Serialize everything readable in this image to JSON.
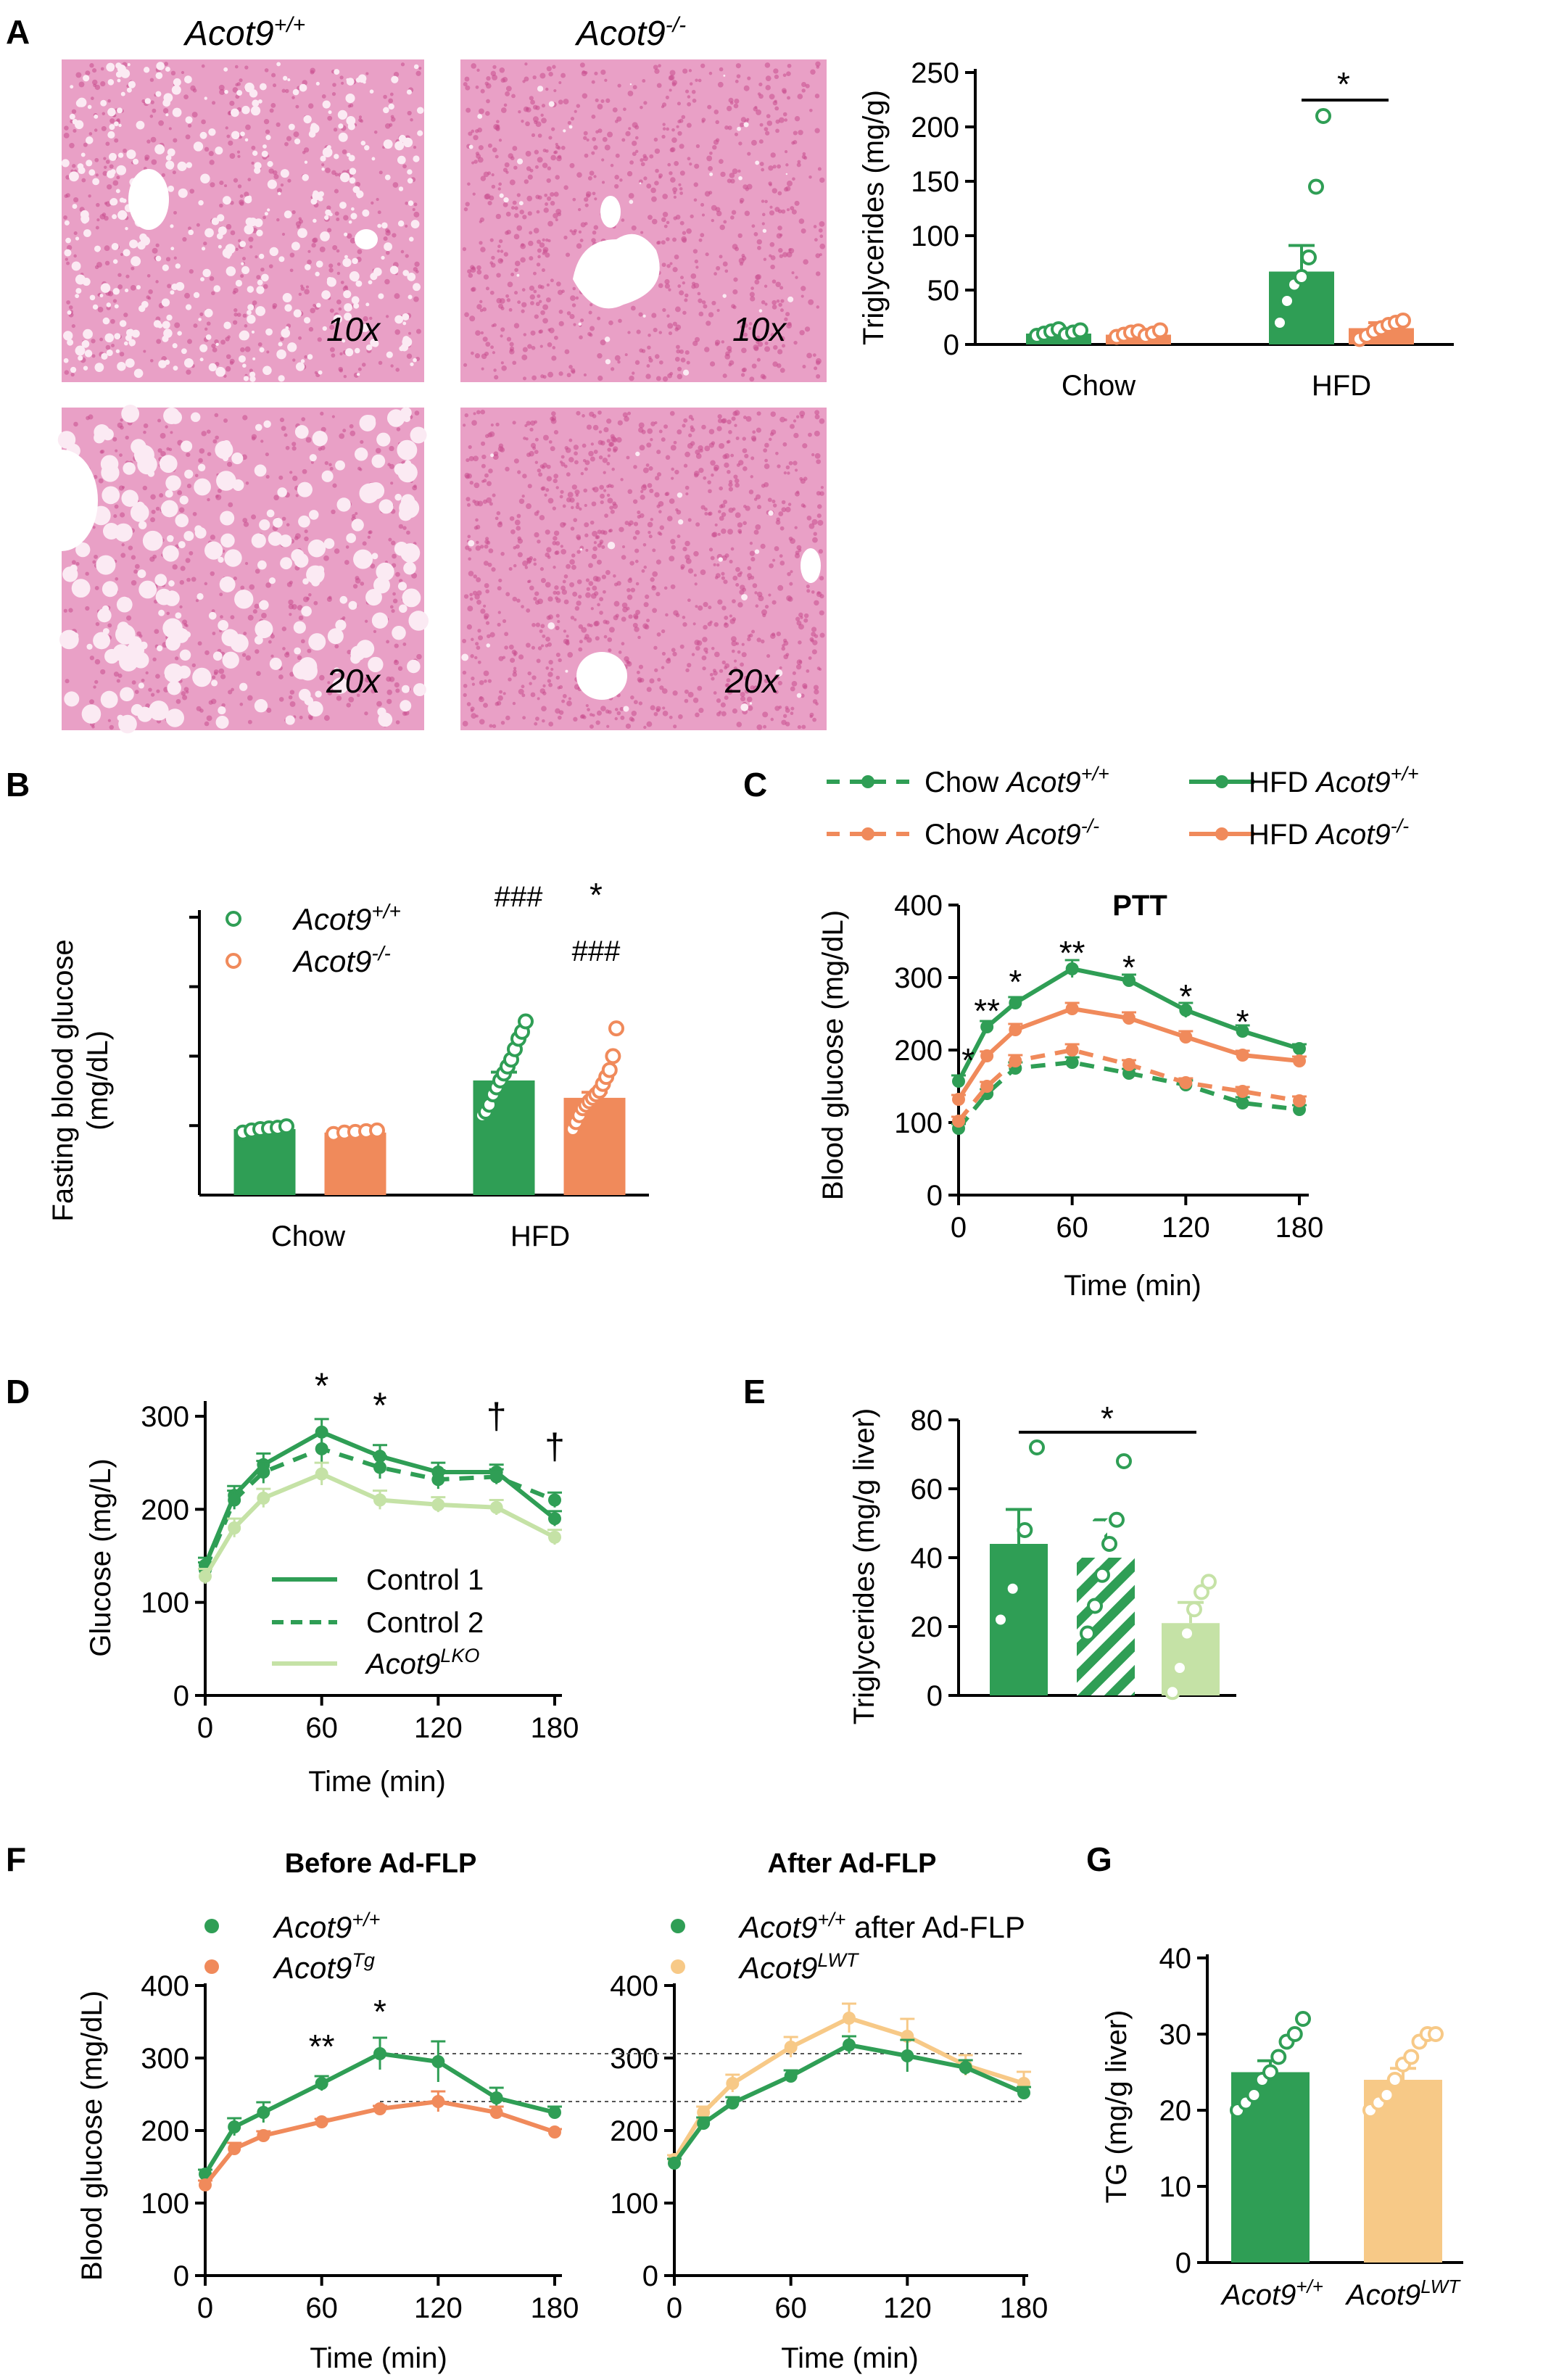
{
  "colors": {
    "green": "#2f9e55",
    "orange": "#f08a5b",
    "light_green": "#c5e2a6",
    "peach": "#f7c987",
    "axis": "#000000",
    "histo_bg": "#e9a0c6",
    "histo_cell": "#c94c8e",
    "histo_fat": "#fbeaf3"
  },
  "panels": {
    "A": {
      "letter": "A",
      "histology": {
        "col_labels": [
          {
            "base": "Acot9",
            "sup": "+/+"
          },
          {
            "base": "Acot9",
            "sup": "-/-"
          }
        ],
        "magnifications": [
          "10x",
          "10x",
          "20x",
          "20x"
        ]
      },
      "chart": {
        "ylabel": "Triglycerides (mg/g)",
        "yticks": [
          "0",
          "50",
          "100",
          "150",
          "200",
          "250"
        ],
        "categories": [
          "Chow",
          "HFD"
        ],
        "sig": "*"
      }
    },
    "B": {
      "letter": "B",
      "ylabel_lines": [
        "Fasting blood glucose",
        "(mg/dL)"
      ],
      "legend": [
        {
          "base": "Acot9",
          "sup": "+/+"
        },
        {
          "base": "Acot9",
          "sup": "-/-"
        }
      ],
      "categories": [
        "Chow",
        "HFD"
      ],
      "annot": {
        "hash1": "###",
        "hash2": "###",
        "star": "*"
      }
    },
    "C": {
      "letter": "C",
      "title": "PTT",
      "ylabel": "Blood glucose (mg/dL)",
      "xlabel": "Time (min)",
      "yticks": [
        "0",
        "100",
        "200",
        "300",
        "400"
      ],
      "xticks": [
        "0",
        "60",
        "120",
        "180"
      ],
      "legend": [
        {
          "pre": "Chow ",
          "base": "Acot9",
          "sup": "+/+"
        },
        {
          "pre": "Chow ",
          "base": "Acot9",
          "sup": "-/-"
        },
        {
          "pre": "HFD ",
          "base": "Acot9",
          "sup": "+/+"
        },
        {
          "pre": "HFD ",
          "base": "Acot9",
          "sup": "-/-"
        }
      ],
      "stars": [
        "*",
        "**",
        "*",
        "**",
        "*",
        "*",
        "*"
      ]
    },
    "D": {
      "letter": "D",
      "ylabel": "Glucose (mg/L)",
      "xlabel": "Time (min)",
      "yticks": [
        "0",
        "100",
        "200",
        "300"
      ],
      "xticks": [
        "0",
        "60",
        "120",
        "180"
      ],
      "legend": [
        {
          "text": "Control 1"
        },
        {
          "text": "Control 2"
        },
        {
          "base": "Acot9",
          "sup": "LKO"
        }
      ],
      "marks": [
        "*",
        "*",
        "†",
        "†"
      ]
    },
    "E": {
      "letter": "E",
      "ylabel": "Triglycerides (mg/g liver)",
      "yticks": [
        "0",
        "20",
        "40",
        "60",
        "80"
      ],
      "sig": "*"
    },
    "F": {
      "letter": "F",
      "ylabel": "Blood glucose (mg/dL)",
      "xlabel": "Time (min)",
      "yticks": [
        "0",
        "100",
        "200",
        "300",
        "400"
      ],
      "xticks": [
        "0",
        "60",
        "120",
        "180"
      ],
      "left_title": "Before Ad-FLP",
      "right_title": "After Ad-FLP",
      "left_legend": [
        {
          "base": "Acot9",
          "sup": "+/+"
        },
        {
          "base": "Acot9",
          "sup": "Tg"
        }
      ],
      "right_legend": [
        {
          "base": "Acot9",
          "sup": "+/+",
          "post": " after Ad-FLP"
        },
        {
          "base": "Acot9",
          "sup": "LWT"
        }
      ],
      "stars": [
        "**",
        "*"
      ]
    },
    "G": {
      "letter": "G",
      "ylabel": "TG (mg/g liver)",
      "yticks": [
        "0",
        "10",
        "20",
        "30",
        "40"
      ],
      "categories": [
        {
          "base": "Acot9",
          "sup": "+/+"
        },
        {
          "base": "Acot9",
          "sup": "LWT"
        }
      ]
    }
  },
  "chart_data": [
    {
      "id": "A",
      "type": "bar",
      "ylim": [
        0,
        250
      ],
      "categories": [
        "Chow",
        "HFD"
      ],
      "series": [
        {
          "name": "Acot9+/+",
          "values": [
            10,
            67
          ],
          "err": [
            3,
            24
          ],
          "points": [
            [
              8,
              10,
              12,
              14,
              9,
              11,
              13
            ],
            [
              20,
              40,
              55,
              62,
              80,
              145,
              210
            ]
          ]
        },
        {
          "name": "Acot9-/-",
          "values": [
            9,
            15
          ],
          "err": [
            2,
            5
          ],
          "points": [
            [
              7,
              9,
              11,
              12,
              8,
              10,
              13
            ],
            [
              5,
              8,
              12,
              15,
              18,
              20,
              22
            ]
          ]
        }
      ]
    },
    {
      "id": "B",
      "type": "bar",
      "ylim": [
        0,
        400
      ],
      "categories": [
        "Chow",
        "HFD"
      ],
      "series": [
        {
          "name": "Acot9+/+",
          "values": [
            95,
            165
          ],
          "err": [
            3,
            12
          ],
          "points": [
            [
              90,
              93,
              95,
              96,
              97,
              99
            ],
            [
              115,
              120,
              130,
              145,
              155,
              165,
              175,
              185,
              195,
              210,
              225,
              235,
              250
            ]
          ]
        },
        {
          "name": "Acot9-/-",
          "values": [
            90,
            140
          ],
          "err": [
            2,
            8
          ],
          "points": [
            [
              88,
              90,
              91,
              92,
              93
            ],
            [
              95,
              105,
              115,
              125,
              130,
              135,
              140,
              145,
              150,
              160,
              170,
              180,
              200,
              240
            ]
          ]
        }
      ]
    },
    {
      "id": "C",
      "type": "line",
      "x": [
        0,
        15,
        30,
        60,
        90,
        120,
        150,
        180
      ],
      "ylim": [
        0,
        400
      ],
      "series": [
        {
          "name": "Chow Acot9+/+",
          "values": [
            92,
            140,
            175,
            183,
            168,
            152,
            127,
            118
          ],
          "err": [
            6,
            6,
            8,
            7,
            6,
            6,
            8,
            6
          ]
        },
        {
          "name": "Chow Acot9-/-",
          "values": [
            102,
            150,
            185,
            200,
            180,
            155,
            143,
            130
          ],
          "err": [
            6,
            6,
            8,
            8,
            6,
            6,
            6,
            6
          ]
        },
        {
          "name": "HFD Acot9+/+",
          "values": [
            157,
            232,
            265,
            312,
            296,
            255,
            226,
            202
          ],
          "err": [
            8,
            8,
            8,
            12,
            8,
            10,
            8,
            6
          ]
        },
        {
          "name": "HFD Acot9-/-",
          "values": [
            132,
            192,
            228,
            257,
            244,
            218,
            193,
            185
          ],
          "err": [
            6,
            6,
            8,
            8,
            8,
            8,
            6,
            6
          ]
        }
      ]
    },
    {
      "id": "D",
      "type": "line",
      "x": [
        0,
        15,
        30,
        60,
        90,
        120,
        150,
        180
      ],
      "ylim": [
        0,
        300
      ],
      "series": [
        {
          "name": "Control 1",
          "values": [
            140,
            215,
            248,
            283,
            257,
            240,
            240,
            190
          ],
          "err": [
            8,
            10,
            12,
            14,
            12,
            10,
            8,
            8
          ]
        },
        {
          "name": "Control 2",
          "values": [
            135,
            210,
            240,
            265,
            245,
            232,
            235,
            210
          ],
          "err": [
            8,
            10,
            12,
            14,
            12,
            10,
            8,
            8
          ]
        },
        {
          "name": "Acot9LKO",
          "values": [
            128,
            180,
            212,
            238,
            210,
            205,
            202,
            170
          ],
          "err": [
            8,
            10,
            10,
            12,
            10,
            8,
            8,
            8
          ]
        }
      ]
    },
    {
      "id": "E",
      "type": "bar",
      "ylim": [
        0,
        80
      ],
      "categories": [
        "Control 1",
        "Control 2",
        "Acot9LKO"
      ],
      "values": [
        44,
        40,
        21
      ],
      "err": [
        10,
        11,
        6
      ],
      "points": [
        [
          22,
          31,
          48,
          72
        ],
        [
          18,
          26,
          35,
          44,
          51,
          68
        ],
        [
          1,
          8,
          18,
          25,
          30,
          33
        ]
      ]
    },
    {
      "id": "F-before",
      "type": "line",
      "x": [
        0,
        15,
        30,
        60,
        90,
        120,
        150,
        180
      ],
      "ylim": [
        0,
        400
      ],
      "series": [
        {
          "name": "Acot9+/+",
          "values": [
            140,
            205,
            225,
            265,
            306,
            295,
            245,
            225
          ],
          "err": [
            6,
            12,
            14,
            10,
            22,
            28,
            14,
            8
          ]
        },
        {
          "name": "Acot9Tg",
          "values": [
            125,
            175,
            193,
            212,
            230,
            240,
            225,
            198
          ],
          "err": [
            6,
            8,
            6,
            4,
            4,
            14,
            8,
            4
          ]
        }
      ]
    },
    {
      "id": "F-after",
      "type": "line",
      "x": [
        0,
        15,
        30,
        60,
        90,
        120,
        150,
        180
      ],
      "ylim": [
        0,
        400
      ],
      "series": [
        {
          "name": "Acot9+/+ after Ad-FLP",
          "values": [
            155,
            210,
            238,
            275,
            318,
            303,
            287,
            252
          ],
          "err": [
            6,
            8,
            8,
            8,
            12,
            22,
            10,
            8
          ]
        },
        {
          "name": "Acot9LWT",
          "values": [
            160,
            225,
            265,
            315,
            355,
            330,
            290,
            265
          ],
          "err": [
            6,
            8,
            12,
            14,
            20,
            24,
            14,
            16
          ]
        }
      ]
    },
    {
      "id": "G",
      "type": "bar",
      "ylim": [
        0,
        40
      ],
      "categories": [
        "Acot9+/+",
        "Acot9LWT"
      ],
      "values": [
        25,
        24
      ],
      "err": [
        1.5,
        1.5
      ],
      "points": [
        [
          20,
          21,
          22,
          24,
          25,
          27,
          29,
          30,
          32
        ],
        [
          20,
          21,
          22,
          24,
          26,
          27,
          29,
          30,
          30
        ]
      ]
    }
  ]
}
